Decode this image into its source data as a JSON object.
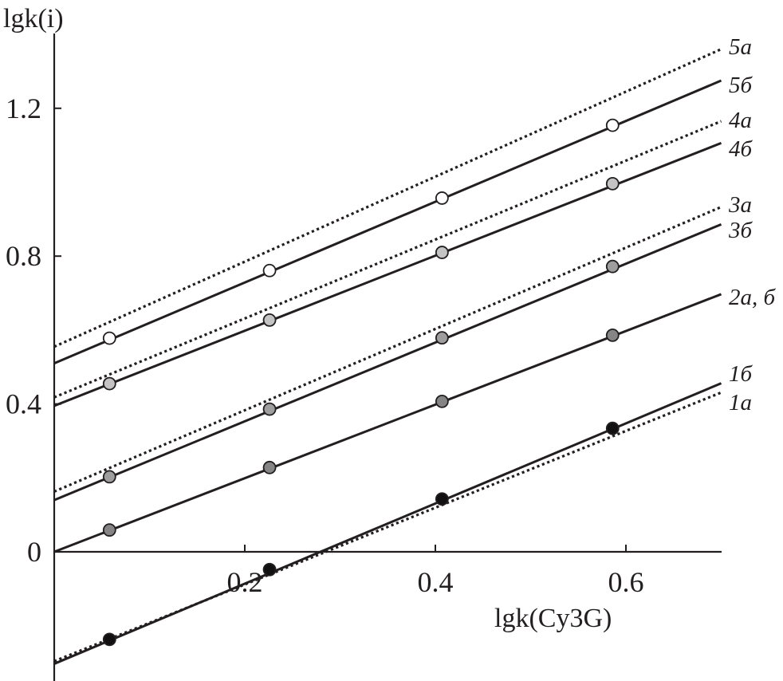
{
  "chart_data": {
    "type": "line",
    "xlabel": "lgk(Cy3G)",
    "ylabel": "lgk(i)",
    "xlim": [
      0.0,
      0.7
    ],
    "ylim": [
      -0.35,
      1.4
    ],
    "x_ticks": [
      0.2,
      0.4,
      0.6
    ],
    "x_tick_labels": [
      "0.2",
      "0.4",
      "0.6"
    ],
    "y_ticks": [
      0,
      0.4,
      0.8,
      1.2
    ],
    "y_tick_labels": [
      "0",
      "0.4",
      "0.8",
      "1.2"
    ],
    "grid": false,
    "legend": "inline labels at right end of lines",
    "series": [
      {
        "name": "5а",
        "style": "dotted",
        "line": [
          [
            0.0,
            0.555
          ],
          [
            0.7,
            1.36
          ]
        ],
        "points": []
      },
      {
        "name": "5б",
        "style": "solid",
        "line": [
          [
            0.0,
            0.51
          ],
          [
            0.7,
            1.275
          ]
        ],
        "marker": "#ffffff",
        "x": [
          0.058,
          0.226,
          0.407,
          0.586
        ],
        "y": [
          0.578,
          0.761,
          0.957,
          1.154
        ]
      },
      {
        "name": "4а",
        "style": "dotted",
        "line": [
          [
            0.0,
            0.418
          ],
          [
            0.7,
            1.165
          ]
        ],
        "points": []
      },
      {
        "name": "4б",
        "style": "solid",
        "line": [
          [
            0.0,
            0.395
          ],
          [
            0.7,
            1.106
          ]
        ],
        "marker": "#c4c4c4",
        "x": [
          0.058,
          0.226,
          0.407,
          0.586
        ],
        "y": [
          0.455,
          0.627,
          0.81,
          0.996
        ]
      },
      {
        "name": "3а",
        "style": "dotted",
        "line": [
          [
            0.0,
            0.163
          ],
          [
            0.7,
            0.933
          ]
        ],
        "points": []
      },
      {
        "name": "3б",
        "style": "solid",
        "line": [
          [
            0.0,
            0.14
          ],
          [
            0.7,
            0.886
          ]
        ],
        "marker": "#9e9e9e",
        "x": [
          0.058,
          0.226,
          0.407,
          0.586
        ],
        "y": [
          0.203,
          0.386,
          0.579,
          0.772
        ]
      },
      {
        "name": "2а, б",
        "style": "solid",
        "line": [
          [
            0.0,
            0.0
          ],
          [
            0.7,
            0.697
          ]
        ],
        "marker": "#858585",
        "x": [
          0.058,
          0.226,
          0.407,
          0.586
        ],
        "y": [
          0.059,
          0.228,
          0.407,
          0.586
        ]
      },
      {
        "name": "1б",
        "style": "solid",
        "line": [
          [
            0.0,
            -0.303
          ],
          [
            0.7,
            0.456
          ]
        ],
        "marker": "#111111",
        "x": [
          0.058,
          0.226,
          0.407,
          0.586
        ],
        "y": [
          -0.237,
          -0.048,
          0.143,
          0.334
        ]
      },
      {
        "name": "1а",
        "style": "dotted",
        "line": [
          [
            0.0,
            -0.296
          ],
          [
            0.7,
            0.431
          ]
        ],
        "points": []
      }
    ]
  }
}
